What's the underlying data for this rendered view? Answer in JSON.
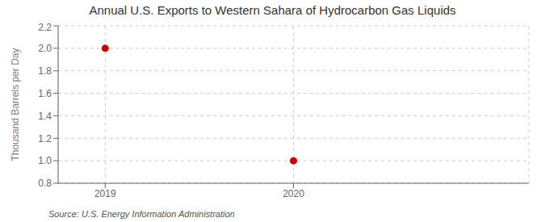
{
  "chart_data": {
    "type": "scatter",
    "title": "Annual U.S. Exports to Western Sahara of Hydrocarbon Gas Liquids",
    "ylabel": "Thousand Barrels per Day",
    "annotation": "Source: U.S. Energy Information Administration",
    "x": [
      2019,
      2020
    ],
    "values": [
      2.0,
      1.0
    ],
    "color": "#cc0000",
    "marker": "circle",
    "xlim": [
      2018.75,
      2021.25
    ],
    "xticks": [
      2019,
      2020
    ],
    "ylim": [
      0.8,
      2.2
    ],
    "yticks": [
      0.8,
      {
        "value": 1.0,
        "label": "1.0"
      },
      1.2,
      1.4,
      1.6,
      1.8,
      {
        "value": 2.0,
        "label": "2.0"
      },
      2.2
    ],
    "grid": true
  }
}
